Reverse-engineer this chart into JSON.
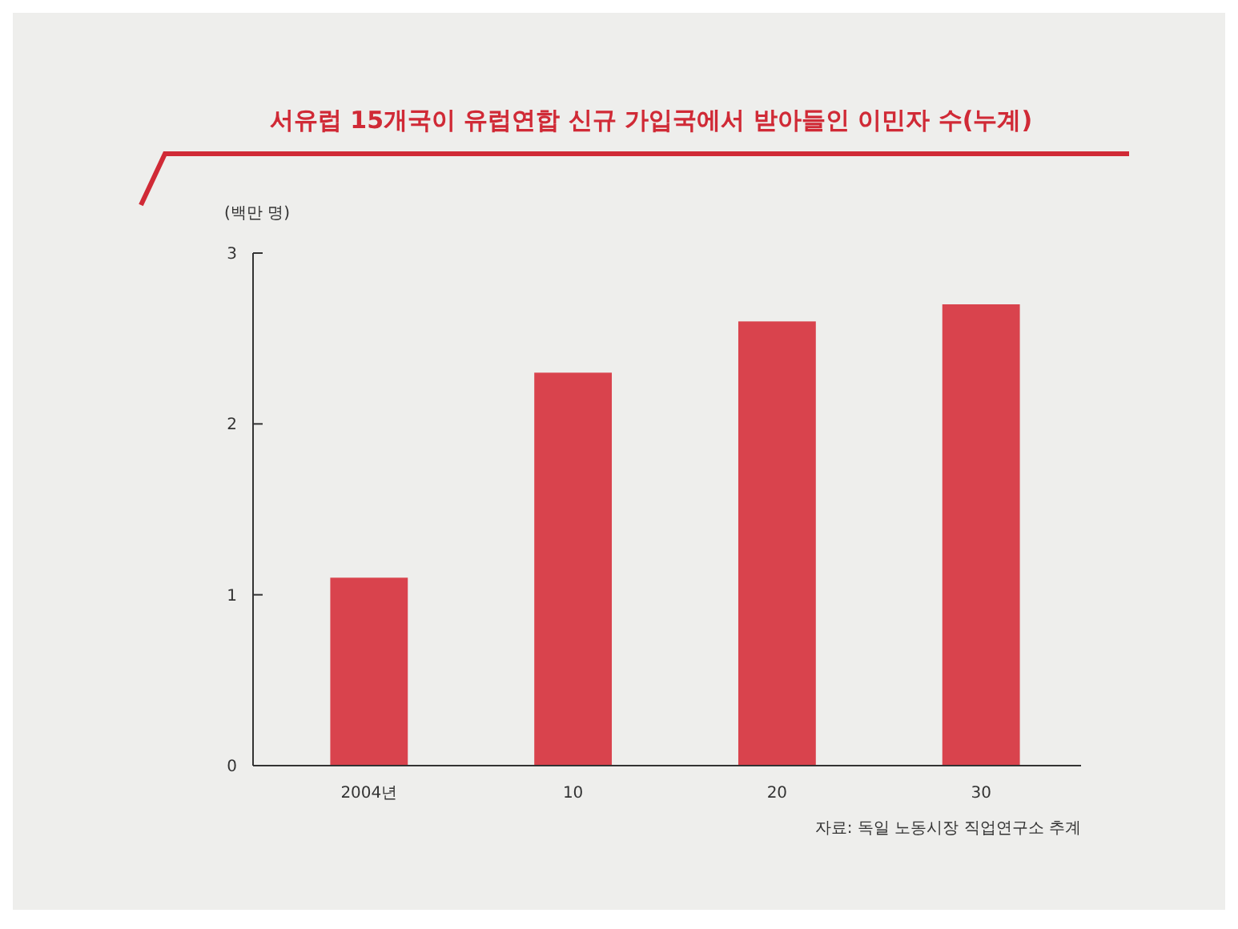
{
  "chart_data": {
    "type": "bar",
    "title": "서유럽 15개국이 유럽연합 신규 가입국에서 받아들인 이민자 수(누계)",
    "ylabel": "(백만 명)",
    "categories": [
      "2004년",
      "10",
      "20",
      "30"
    ],
    "values": [
      1.1,
      2.3,
      2.6,
      2.7
    ],
    "color": "#d9434d",
    "ylim": [
      0,
      3
    ],
    "yticks": [
      0,
      1,
      2,
      3
    ],
    "grid": false,
    "annotations": [
      "자료: 독일 노동시장 직업연구소 추계"
    ]
  }
}
